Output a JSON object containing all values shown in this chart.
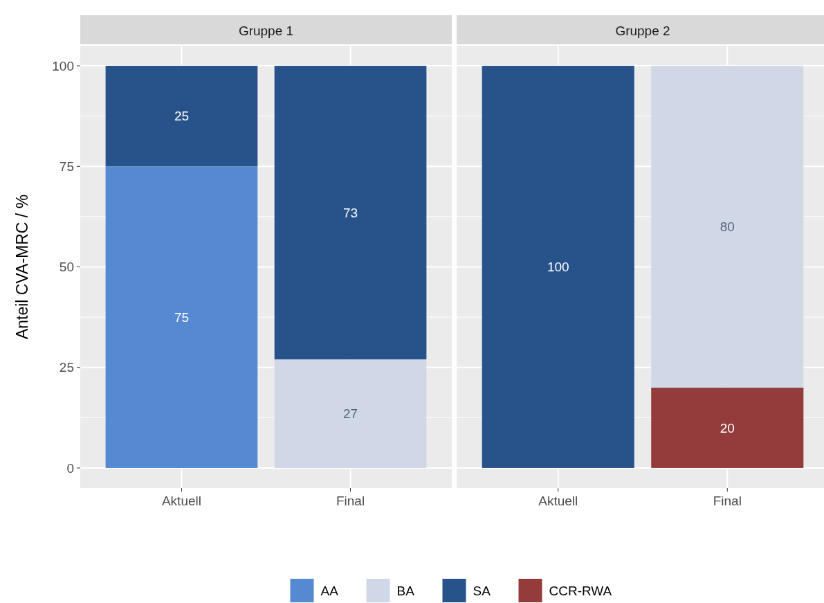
{
  "chart_data": [
    {
      "type": "bar",
      "title": "Gruppe 1",
      "ylabel": "Anteil CVA-MRC / %",
      "categories": [
        "Aktuell",
        "Final"
      ],
      "stacked": true,
      "ylim": [
        -5,
        105
      ],
      "yticks": [
        0,
        25,
        50,
        75,
        100
      ],
      "grid": true,
      "legend": "bottom",
      "data_labels": true,
      "series": [
        {
          "name": "AA",
          "color": "#5589d2",
          "values": [
            75,
            null
          ]
        },
        {
          "name": "BA",
          "color": "#d0d8e8",
          "values": [
            null,
            27
          ]
        },
        {
          "name": "SA",
          "color": "#27538a",
          "values": [
            25,
            73
          ]
        }
      ]
    },
    {
      "type": "bar",
      "title": "Gruppe 2",
      "categories": [
        "Aktuell",
        "Final"
      ],
      "stacked": true,
      "ylim": [
        -5,
        105
      ],
      "yticks": [
        0,
        25,
        50,
        75,
        100
      ],
      "grid": true,
      "legend": "bottom",
      "data_labels": true,
      "tick_labels": "x",
      "series": [
        {
          "name": "CCR-RWA",
          "color": "#943b3b",
          "values": [
            null,
            20
          ]
        },
        {
          "color": "#d0d8e8",
          "values": [
            null,
            80
          ]
        },
        {
          "color": "#27538a",
          "values": [
            100,
            null
          ]
        }
      ]
    }
  ]
}
